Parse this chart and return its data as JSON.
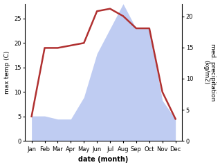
{
  "months": [
    "Jan",
    "Feb",
    "Mar",
    "Apr",
    "May",
    "Jun",
    "Jul",
    "Aug",
    "Sep",
    "Oct",
    "Nov",
    "Dec"
  ],
  "temp": [
    5.0,
    19.0,
    19.0,
    19.5,
    20.0,
    26.5,
    27.0,
    25.5,
    23.0,
    23.0,
    10.0,
    4.5
  ],
  "precip": [
    4.0,
    4.0,
    3.5,
    3.5,
    7.0,
    14.0,
    18.0,
    22.0,
    18.0,
    18.0,
    6.5,
    3.5
  ],
  "temp_color": "#b03030",
  "precip_color": "#aabbee",
  "precip_alpha": 0.75,
  "temp_ylim": [
    0,
    28
  ],
  "precip_ylim": [
    0,
    22
  ],
  "temp_yticks": [
    0,
    5,
    10,
    15,
    20,
    25
  ],
  "precip_yticks": [
    0,
    5,
    10,
    15,
    20
  ],
  "xlabel": "date (month)",
  "ylabel_left": "max temp (C)",
  "ylabel_right": "med. precipitation\n(kg/m2)",
  "bg_color": "#ffffff",
  "spine_color": "#aaaaaa",
  "tick_labelsize": 6,
  "label_fontsize": 6.5,
  "xlabel_fontsize": 7,
  "line_width": 1.8
}
